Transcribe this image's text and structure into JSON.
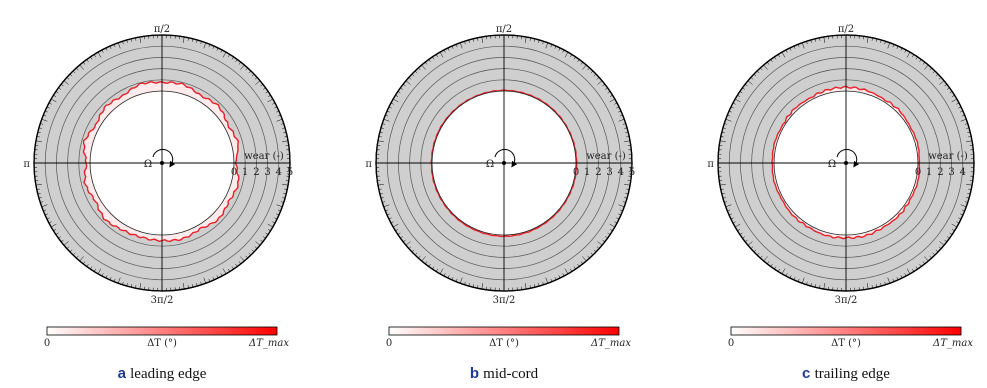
{
  "figure": {
    "panels": [
      {
        "letter": "a",
        "caption": "leading edge"
      },
      {
        "letter": "b",
        "caption": "mid-cord"
      },
      {
        "letter": "c",
        "caption": "trailing edge"
      }
    ]
  },
  "chart_data": [
    {
      "type": "polar",
      "panel": "a",
      "title": "leading edge",
      "angle_labels": [
        "π/2",
        "π",
        "3π/2"
      ],
      "radial_axis_label": "wear (-)",
      "radial_ticks": [
        "0",
        "1",
        "2",
        "3",
        "4",
        "5"
      ],
      "rlim": [
        0,
        5
      ],
      "rotation_symbol": "Ω",
      "grid": true,
      "colorbar": {
        "min_label": "0",
        "label": "ΔT (°)",
        "max_label": "ΔT_max",
        "colors": [
          "#ffffff",
          "#ff0000"
        ]
      },
      "series": [
        {
          "values_theta_deg": [
            0,
            15,
            30,
            45,
            60,
            75,
            90,
            105,
            120,
            135,
            150,
            165,
            180,
            195,
            210,
            225,
            240,
            255,
            270,
            285,
            300,
            315,
            330,
            345
          ],
          "values_wear": [
            0.12,
            0.6,
            0.35,
            0.75,
            0.5,
            0.85,
            0.75,
            0.9,
            0.5,
            0.7,
            0.35,
            0.8,
            0.3,
            0.7,
            0.4,
            0.75,
            0.5,
            0.45,
            0.5,
            0.6,
            0.35,
            0.7,
            0.45,
            0.65
          ]
        }
      ]
    },
    {
      "type": "polar",
      "panel": "b",
      "title": "mid-cord",
      "angle_labels": [
        "π/2",
        "π",
        "3π/2"
      ],
      "radial_axis_label": "wear (-)",
      "radial_ticks": [
        "0",
        "1",
        "2",
        "3",
        "4",
        "5"
      ],
      "rlim": [
        0,
        5
      ],
      "rotation_symbol": "Ω",
      "grid": true,
      "colorbar": {
        "min_label": "0",
        "label": "ΔT (°)",
        "max_label": "ΔT_max",
        "colors": [
          "#ffffff",
          "#ff0000"
        ]
      },
      "series": [
        {
          "values_theta_deg": [
            0,
            15,
            30,
            45,
            60,
            75,
            90,
            105,
            120,
            135,
            150,
            165,
            180,
            195,
            210,
            225,
            240,
            255,
            270,
            285,
            300,
            315,
            330,
            345
          ],
          "values_wear": [
            0.05,
            0.05,
            0.04,
            0.05,
            0.06,
            0.05,
            0.06,
            0.05,
            0.04,
            0.05,
            0.06,
            0.05,
            0.05,
            0.06,
            0.05,
            0.06,
            0.08,
            0.1,
            0.12,
            0.1,
            0.08,
            0.06,
            0.05,
            0.05
          ]
        }
      ]
    },
    {
      "type": "polar",
      "panel": "c",
      "title": "trailing edge",
      "angle_labels": [
        "π/2",
        "π",
        "3π/2"
      ],
      "radial_axis_label": "wear (-)",
      "radial_ticks": [
        "0",
        "1",
        "2",
        "3",
        "4"
      ],
      "rlim": [
        0,
        5
      ],
      "rotation_symbol": "Ω",
      "grid": true,
      "colorbar": {
        "min_label": "0",
        "label": "ΔT (°)",
        "max_label": "ΔT_max",
        "colors": [
          "#ffffff",
          "#ff0000"
        ]
      },
      "series": [
        {
          "values_theta_deg": [
            0,
            15,
            30,
            45,
            60,
            75,
            90,
            105,
            120,
            135,
            150,
            165,
            180,
            195,
            210,
            225,
            240,
            255,
            270,
            285,
            300,
            315,
            330,
            345
          ],
          "values_wear": [
            0.1,
            0.2,
            0.15,
            0.25,
            0.2,
            0.3,
            0.35,
            0.3,
            0.2,
            0.25,
            0.15,
            0.2,
            0.15,
            0.2,
            0.15,
            0.25,
            0.2,
            0.3,
            0.25,
            0.3,
            0.2,
            0.25,
            0.15,
            0.2
          ]
        }
      ]
    }
  ]
}
